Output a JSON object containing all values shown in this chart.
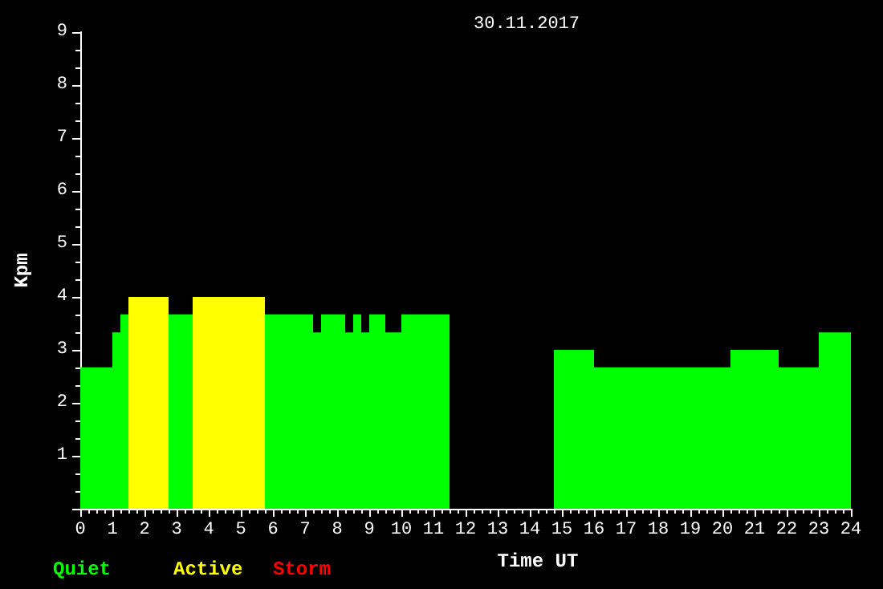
{
  "chart_data": {
    "type": "histogram",
    "title": "30.11.2017",
    "xlabel": "Time UT",
    "ylabel": "Kpm",
    "bins": [
      0,
      1,
      1.25,
      1.5,
      2.75,
      3.5,
      5.75,
      7.25,
      7.5,
      8.25,
      8.5,
      8.75,
      9,
      9.5,
      10,
      11.5,
      14.75,
      16,
      20.25,
      21.75,
      23,
      24
    ],
    "series": [
      {
        "name": "Quiet",
        "color": "#00ff00",
        "values": [
          2.67,
          3.33,
          3.67,
          null,
          3.67,
          null,
          3.67,
          3.33,
          3.67,
          3.33,
          3.67,
          3.33,
          3.67,
          3.33,
          3.67,
          0,
          3,
          2.67,
          3,
          2.67,
          3.33
        ]
      },
      {
        "name": "Active",
        "color": "#ffff00",
        "values": [
          null,
          null,
          null,
          4,
          null,
          4,
          null,
          null,
          null,
          null,
          null,
          null,
          null,
          null,
          null,
          null,
          null,
          null,
          null,
          null,
          null
        ]
      }
    ],
    "annotations": [
      "Storm"
    ],
    "xlim": [
      0,
      24
    ],
    "xticks": [
      0,
      1,
      2,
      3,
      4,
      5,
      6,
      7,
      8,
      9,
      10,
      11,
      12,
      13,
      14,
      15,
      16,
      17,
      18,
      19,
      20,
      21,
      22,
      23,
      24
    ],
    "ylim": [
      0,
      9
    ],
    "yticks": [
      1,
      2,
      3,
      4,
      5,
      6,
      7,
      8,
      9
    ],
    "grid": false,
    "legend": "bottom left"
  }
}
